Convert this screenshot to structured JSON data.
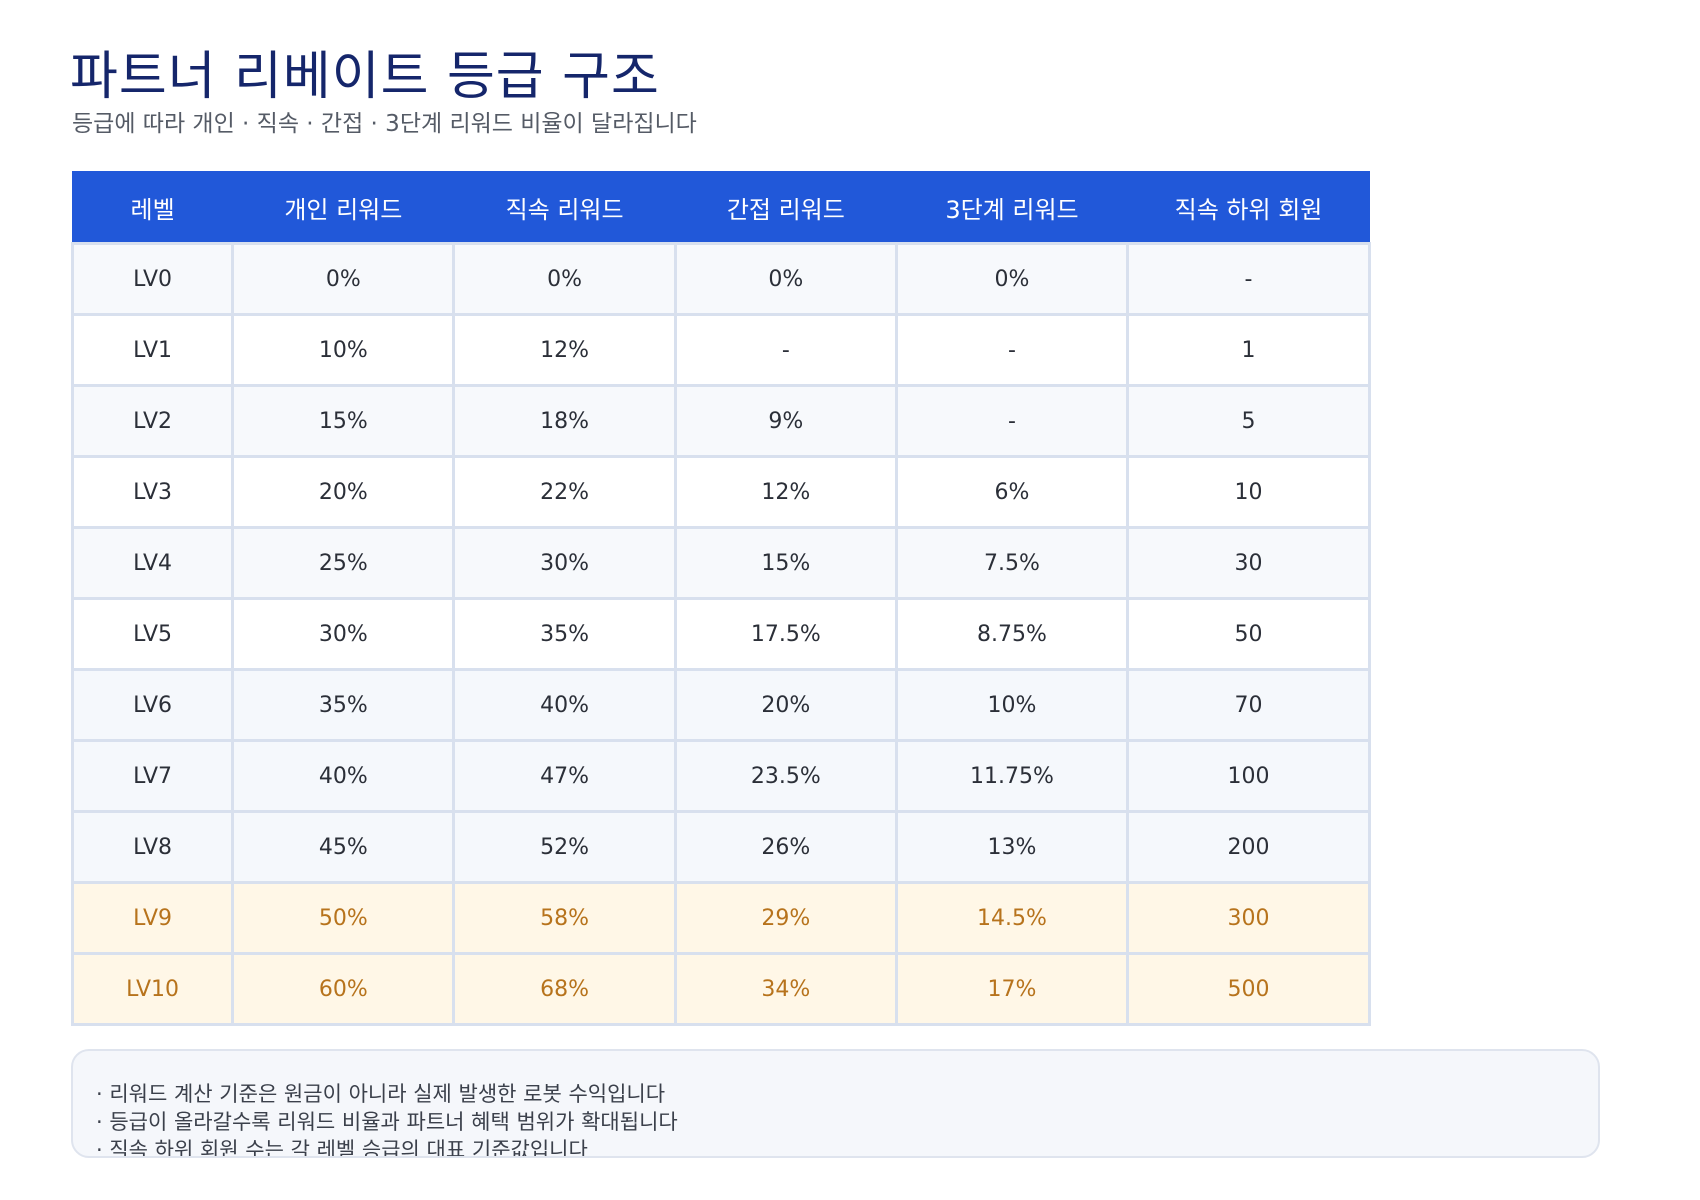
{
  "header": {
    "title": "파트너 리베이트 등급 구조",
    "subtitle": "등급에 따라 개인 · 직속 · 간접 · 3단계 리워드 비율이 달라집니다"
  },
  "table": {
    "columns": [
      "레벨",
      "개인 리워드",
      "직속 리워드",
      "간접 리워드",
      "3단계 리워드",
      "직속 하위 회원"
    ],
    "rows": [
      {
        "tier": "base",
        "cells": [
          "LV0",
          "0%",
          "0%",
          "0%",
          "0%",
          "-"
        ]
      },
      {
        "tier": "base",
        "cells": [
          "LV1",
          "10%",
          "12%",
          "-",
          "-",
          "1"
        ]
      },
      {
        "tier": "base",
        "cells": [
          "LV2",
          "15%",
          "18%",
          "9%",
          "-",
          "5"
        ]
      },
      {
        "tier": "base",
        "cells": [
          "LV3",
          "20%",
          "22%",
          "12%",
          "6%",
          "10"
        ]
      },
      {
        "tier": "base",
        "cells": [
          "LV4",
          "25%",
          "30%",
          "15%",
          "7.5%",
          "30"
        ]
      },
      {
        "tier": "base",
        "cells": [
          "LV5",
          "30%",
          "35%",
          "17.5%",
          "8.75%",
          "50"
        ]
      },
      {
        "tier": "mid",
        "cells": [
          "LV6",
          "35%",
          "40%",
          "20%",
          "10%",
          "70"
        ]
      },
      {
        "tier": "mid",
        "cells": [
          "LV7",
          "40%",
          "47%",
          "23.5%",
          "11.75%",
          "100"
        ]
      },
      {
        "tier": "mid",
        "cells": [
          "LV8",
          "45%",
          "52%",
          "26%",
          "13%",
          "200"
        ]
      },
      {
        "tier": "top",
        "cells": [
          "LV9",
          "50%",
          "58%",
          "29%",
          "14.5%",
          "300"
        ]
      },
      {
        "tier": "top",
        "cells": [
          "LV10",
          "60%",
          "68%",
          "34%",
          "17%",
          "500"
        ]
      }
    ]
  },
  "notes": [
    "· 리워드 계산 기준은 원금이 아니라 실제 발생한 로봇 수익입니다",
    "· 등급이 올라갈수록 리워드 비율과 파트너 혜택 범위가 확대됩니다",
    "· 직속 하위 회원 수는 각 레벨 승급의 대표 기준값입니다"
  ],
  "colors": {
    "title": "#15266b",
    "header_bg": "#2158d9",
    "top_tier_bg": "#fff7e7",
    "top_tier_text": "#b7731c",
    "grid": "#d8e0ee"
  }
}
